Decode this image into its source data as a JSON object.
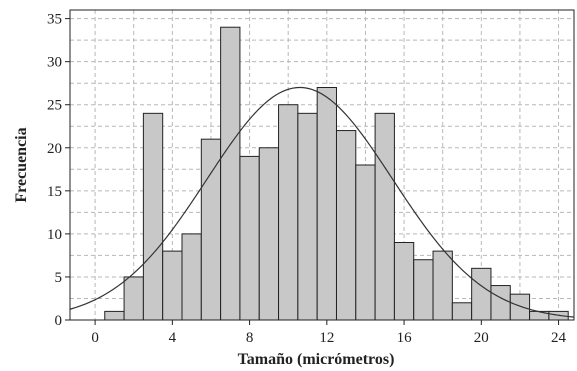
{
  "chart_data": {
    "type": "bar",
    "subtype": "histogram",
    "title": "",
    "xlabel": "Tamaño (micrómetros)",
    "ylabel": "Frecuencia",
    "xlim": [
      -1.3,
      24.8
    ],
    "ylim": [
      0,
      36
    ],
    "bin_width": 1,
    "bins": [
      {
        "x": 1,
        "y": 1
      },
      {
        "x": 2,
        "y": 5
      },
      {
        "x": 3,
        "y": 24
      },
      {
        "x": 4,
        "y": 8
      },
      {
        "x": 5,
        "y": 10
      },
      {
        "x": 6,
        "y": 21
      },
      {
        "x": 7,
        "y": 34
      },
      {
        "x": 8,
        "y": 19
      },
      {
        "x": 9,
        "y": 20
      },
      {
        "x": 10,
        "y": 25
      },
      {
        "x": 11,
        "y": 24
      },
      {
        "x": 12,
        "y": 27
      },
      {
        "x": 13,
        "y": 22
      },
      {
        "x": 14,
        "y": 18
      },
      {
        "x": 15,
        "y": 24
      },
      {
        "x": 16,
        "y": 9
      },
      {
        "x": 17,
        "y": 7
      },
      {
        "x": 18,
        "y": 8
      },
      {
        "x": 19,
        "y": 2
      },
      {
        "x": 20,
        "y": 6
      },
      {
        "x": 21,
        "y": 4
      },
      {
        "x": 22,
        "y": 3
      },
      {
        "x": 23,
        "y": 1
      },
      {
        "x": 24,
        "y": 1
      }
    ],
    "xticks": [
      "0",
      "4",
      "8",
      "12",
      "16",
      "20",
      "24"
    ],
    "xtick_values": [
      0,
      4,
      8,
      12,
      16,
      20,
      24
    ],
    "yticks": [
      "0",
      "5",
      "10",
      "15",
      "20",
      "25",
      "30",
      "35"
    ],
    "ytick_values": [
      0,
      5,
      10,
      15,
      20,
      25,
      30,
      35
    ],
    "fit_curve": {
      "type": "normal",
      "mean": 10.6,
      "std": 4.8,
      "peak": 27
    },
    "grid": true,
    "colors": {
      "bar_fill": "#c8c8c8",
      "bar_edge": "#222222",
      "grid": "#b8b8b8",
      "curve": "#333333"
    }
  }
}
